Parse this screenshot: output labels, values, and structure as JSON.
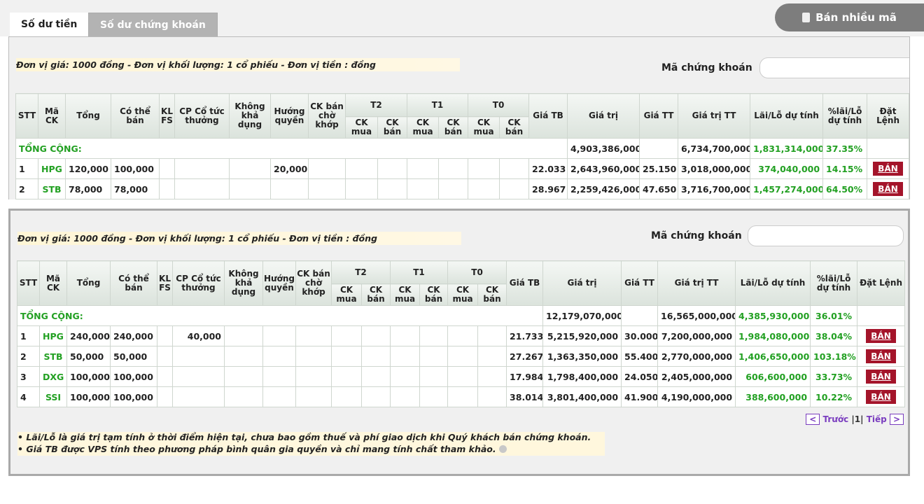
{
  "tabs": [
    "Số dư tiền",
    "Số dư chứng khoán"
  ],
  "sell_many_button": "Bán nhiều mã",
  "panels": [
    {
      "unit_note": "Đơn vị giá: 1000 đồng - Đơn vị khối lượng: 1 cổ phiếu - Đơn vị tiền : đồng",
      "search_label": "Mã chứng khoán",
      "header": {
        "stt": "STT",
        "code": "Mã CK",
        "total": "Tổng",
        "sellable": "Có thể bán",
        "klfs": "KL FS",
        "dividend": "CP Cổ tức thưởng",
        "unavailable": "Không khả dụng",
        "rights": "Hướng quyền",
        "pending": "CK bán chờ khớp",
        "t2": "T2",
        "t1": "T1",
        "t0": "T0",
        "buy": "CK mua",
        "sell": "CK bán",
        "avg_price": "Giá TB",
        "value": "Giá trị",
        "market_price": "Giá TT",
        "market_value": "Giá trị TT",
        "pnl": "Lãi/Lỗ dự tính",
        "pnl_pct": "%lãi/Lỗ dự tính",
        "action": "Đặt Lệnh"
      },
      "total_row": {
        "label": "TỔNG CỘNG:",
        "value": "4,903,386,000",
        "market_value": "6,734,700,000",
        "pnl": "1,831,314,000",
        "pnl_pct": "37.35%"
      },
      "rows": [
        {
          "stt": "1",
          "code": "HPG",
          "total": "120,000",
          "sellable": "100,000",
          "rights": "20,000",
          "avg_price": "22.033",
          "value": "2,643,960,000",
          "market_price": "25.150",
          "market_value": "3,018,000,000",
          "pnl": "374,040,000",
          "pnl_pct": "14.15%",
          "action": "BÁN"
        },
        {
          "stt": "2",
          "code": "STB",
          "total": "78,000",
          "sellable": "78,000",
          "avg_price": "28.967",
          "value": "2,259,426,000",
          "market_price": "47.650",
          "market_value": "3,716,700,000",
          "pnl": "1,457,274,000",
          "pnl_pct": "64.50%",
          "action": "BÁN"
        }
      ]
    },
    {
      "unit_note": "Đơn vị giá: 1000 đồng - Đơn vị khối lượng: 1 cổ phiếu - Đơn vị tiền : đồng",
      "search_label": "Mã chứng khoán",
      "header": {
        "stt": "STT",
        "code": "Mã CK",
        "total": "Tổng",
        "sellable": "Có thể bán",
        "klfs": "KL FS",
        "dividend": "CP Cổ tức thưởng",
        "unavailable": "Không khả dụng",
        "rights": "Hướng quyền",
        "pending": "CK bán chờ khớp",
        "t2": "T2",
        "t1": "T1",
        "t0": "T0",
        "buy": "CK mua",
        "sell": "CK bán",
        "avg_price": "Giá TB",
        "value": "Giá trị",
        "market_price": "Giá TT",
        "market_value": "Giá trị TT",
        "pnl": "Lãi/Lỗ dự tính",
        "pnl_pct": "%lãi/Lỗ dự tính",
        "action": "Đặt Lệnh"
      },
      "total_row": {
        "label": "TỔNG CỘNG:",
        "value": "12,179,070,000",
        "market_value": "16,565,000,000",
        "pnl": "4,385,930,000",
        "pnl_pct": "36.01%"
      },
      "rows": [
        {
          "stt": "1",
          "code": "HPG",
          "total": "240,000",
          "sellable": "240,000",
          "dividend": "40,000",
          "avg_price": "21.733",
          "value": "5,215,920,000",
          "market_price": "30.000",
          "market_value": "7,200,000,000",
          "pnl": "1,984,080,000",
          "pnl_pct": "38.04%",
          "action": "BÁN"
        },
        {
          "stt": "2",
          "code": "STB",
          "total": "50,000",
          "sellable": "50,000",
          "avg_price": "27.267",
          "value": "1,363,350,000",
          "market_price": "55.400",
          "market_value": "2,770,000,000",
          "pnl": "1,406,650,000",
          "pnl_pct": "103.18%",
          "action": "BÁN"
        },
        {
          "stt": "3",
          "code": "DXG",
          "total": "100,000",
          "sellable": "100,000",
          "avg_price": "17.984",
          "value": "1,798,400,000",
          "market_price": "24.050",
          "market_value": "2,405,000,000",
          "pnl": "606,600,000",
          "pnl_pct": "33.73%",
          "action": "BÁN"
        },
        {
          "stt": "4",
          "code": "SSI",
          "total": "100,000",
          "sellable": "100,000",
          "avg_price": "38.014",
          "value": "3,801,400,000",
          "market_price": "41.900",
          "market_value": "4,190,000,000",
          "pnl": "388,600,000",
          "pnl_pct": "10.22%",
          "action": "BÁN"
        }
      ],
      "pagination": {
        "prev_icon": "<",
        "prev": "Trước",
        "separator": "|",
        "page": "1",
        "next": "Tiếp",
        "next_icon": ">"
      },
      "notes": [
        "Lãi/Lỗ là giá trị tạm tính ở thời điểm hiện tại, chưa bao gồm thuế và phí giao dịch khi Quý khách bán chứng khoán.",
        "Giá TB được VPS tính theo phương pháp bình quân gia quyền và chỉ mang tính chất tham khảo."
      ]
    }
  ]
}
